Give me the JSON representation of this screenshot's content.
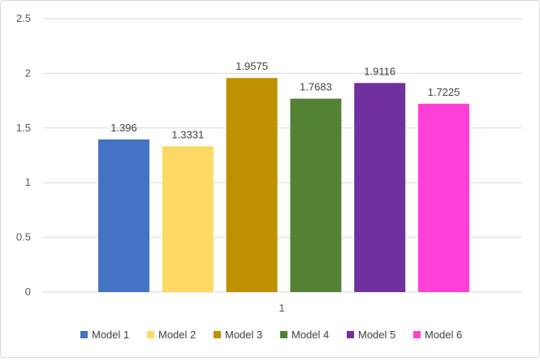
{
  "chart_data": {
    "type": "bar",
    "categories": [
      "1"
    ],
    "series": [
      {
        "name": "Model 1",
        "value": 1.396,
        "label": "1.396",
        "color": "#4472C4"
      },
      {
        "name": "Model 2",
        "value": 1.3331,
        "label": "1.3331",
        "color": "#FFD966"
      },
      {
        "name": "Model 3",
        "value": 1.9575,
        "label": "1.9575",
        "color": "#BF9000"
      },
      {
        "name": "Model 4",
        "value": 1.7683,
        "label": "1.7683",
        "color": "#548235"
      },
      {
        "name": "Model 5",
        "value": 1.9116,
        "label": "1.9116",
        "color": "#7030A0"
      },
      {
        "name": "Model 6",
        "value": 1.7225,
        "label": "1.7225",
        "color": "#FF3FD6"
      }
    ],
    "yticks": [
      "0",
      "0.5",
      "1",
      "1.5",
      "2",
      "2.5"
    ],
    "ylim": [
      0,
      2.5
    ],
    "grid": true,
    "legend_position": "bottom"
  }
}
